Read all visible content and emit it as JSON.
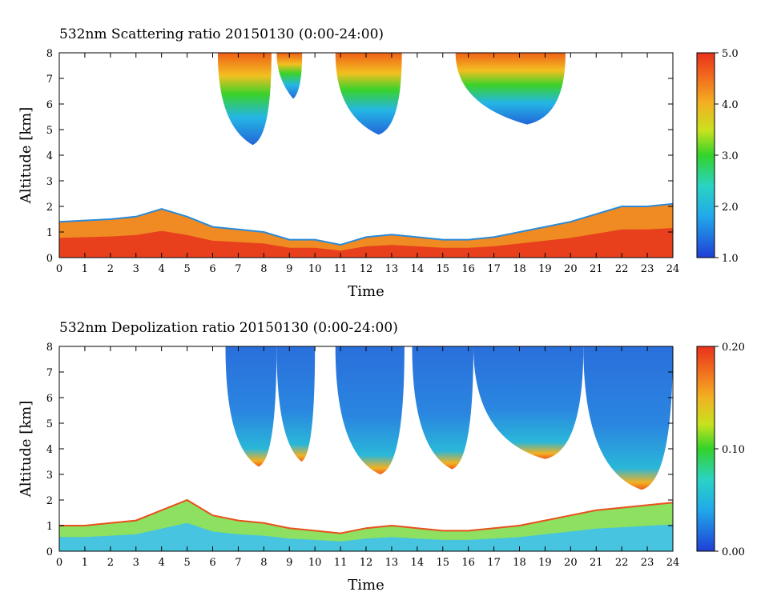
{
  "chart_data": [
    {
      "type": "heatmap",
      "title": "532nm Scattering ratio  20150130 (0:00-24:00)",
      "xlabel": "Time",
      "ylabel": "Altitude [km]",
      "xlim": [
        0,
        24
      ],
      "ylim": [
        0,
        8
      ],
      "xticks": [
        "0",
        "1",
        "2",
        "3",
        "4",
        "5",
        "6",
        "7",
        "8",
        "9",
        "10",
        "11",
        "12",
        "13",
        "14",
        "15",
        "16",
        "17",
        "18",
        "19",
        "20",
        "21",
        "22",
        "23",
        "24"
      ],
      "yticks": [
        "0",
        "1",
        "2",
        "3",
        "4",
        "5",
        "6",
        "7",
        "8"
      ],
      "colorbar": {
        "min": 1.0,
        "max": 5.0,
        "ticks": [
          "1.0",
          "2.0",
          "3.0",
          "4.0",
          "5.0"
        ]
      },
      "features": [
        {
          "kind": "boundary_layer",
          "t_start": 0,
          "t_end": 24,
          "top_km": [
            1.4,
            1.45,
            1.5,
            1.6,
            1.9,
            1.6,
            1.2,
            1.1,
            1.0,
            0.7,
            0.7,
            0.5,
            0.8,
            0.9,
            0.8,
            0.7,
            0.7,
            0.8,
            1.0,
            1.2,
            1.4,
            1.7,
            2.0,
            2.0,
            2.1
          ]
        },
        {
          "kind": "cloud",
          "t_start": 6.2,
          "t_end": 8.3,
          "base_km": 4.4
        },
        {
          "kind": "cloud",
          "t_start": 8.5,
          "t_end": 9.5,
          "base_km": 6.2
        },
        {
          "kind": "cloud",
          "t_start": 10.8,
          "t_end": 13.4,
          "base_km": 4.8
        },
        {
          "kind": "cloud",
          "t_start": 15.5,
          "t_end": 19.8,
          "base_km": 5.2
        }
      ]
    },
    {
      "type": "heatmap",
      "title": "532nm Depolization ratio  20150130 (0:00-24:00)",
      "xlabel": "Time",
      "ylabel": "Altitude [km]",
      "xlim": [
        0,
        24
      ],
      "ylim": [
        0,
        8
      ],
      "xticks": [
        "0",
        "1",
        "2",
        "3",
        "4",
        "5",
        "6",
        "7",
        "8",
        "9",
        "10",
        "11",
        "12",
        "13",
        "14",
        "15",
        "16",
        "17",
        "18",
        "19",
        "20",
        "21",
        "22",
        "23",
        "24"
      ],
      "yticks": [
        "0",
        "1",
        "2",
        "3",
        "4",
        "5",
        "6",
        "7",
        "8"
      ],
      "colorbar": {
        "min": 0.0,
        "max": 0.2,
        "ticks": [
          "0.00",
          "0.10",
          "0.20"
        ]
      },
      "features": [
        {
          "kind": "boundary_layer",
          "t_start": 0,
          "t_end": 24,
          "top_km": [
            1.0,
            1.0,
            1.1,
            1.2,
            1.6,
            2.0,
            1.4,
            1.2,
            1.1,
            0.9,
            0.8,
            0.7,
            0.9,
            1.0,
            0.9,
            0.8,
            0.8,
            0.9,
            1.0,
            1.2,
            1.4,
            1.6,
            1.7,
            1.8,
            1.9
          ]
        },
        {
          "kind": "cloud",
          "t_start": 6.5,
          "t_end": 8.5,
          "base_km": 3.3
        },
        {
          "kind": "cloud",
          "t_start": 8.5,
          "t_end": 10.0,
          "base_km": 3.5
        },
        {
          "kind": "cloud",
          "t_start": 10.8,
          "t_end": 13.5,
          "base_km": 3.0
        },
        {
          "kind": "cloud",
          "t_start": 13.8,
          "t_end": 16.2,
          "base_km": 3.2
        },
        {
          "kind": "cloud",
          "t_start": 16.2,
          "t_end": 20.5,
          "base_km": 3.6
        },
        {
          "kind": "cloud",
          "t_start": 20.5,
          "t_end": 24.0,
          "base_km": 2.4
        }
      ]
    }
  ]
}
